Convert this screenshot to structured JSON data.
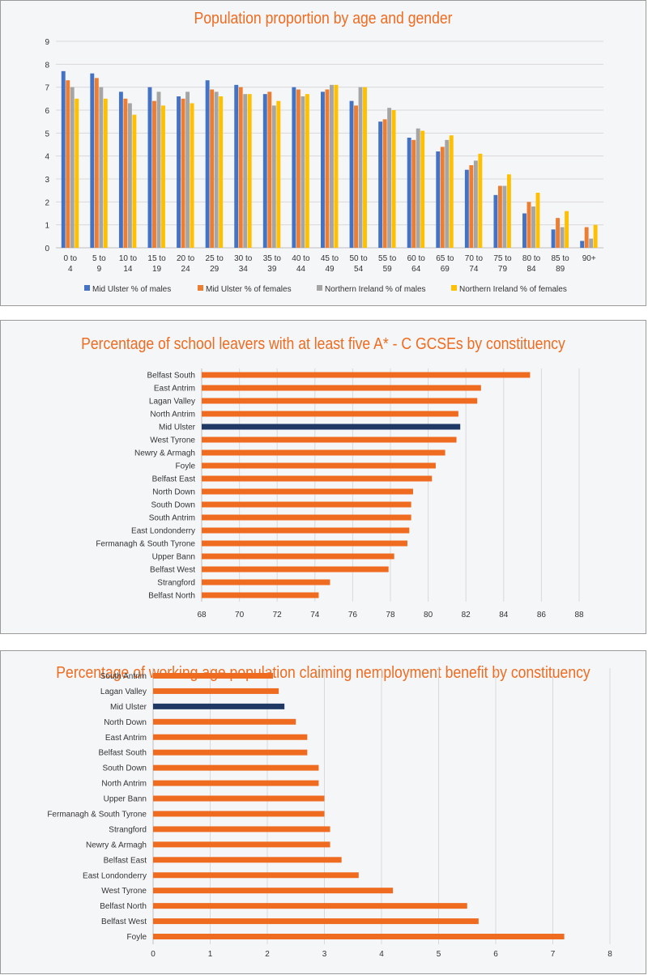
{
  "charts": [
    {
      "title": "Population proportion by age and gender"
    },
    {
      "title": "Percentage of school leavers with at least five A* - C GCSEs by constituency"
    },
    {
      "title": "Percentage of working age population claiming nemployment benefit by constituency"
    }
  ],
  "colors": {
    "title": "#ee6b1f",
    "blue": "#4472c4",
    "orange": "#ed7d31",
    "gray": "#a5a5a5",
    "yellow": "#ffc000",
    "highlight": "#1f3864",
    "bar": "#ee6b1f"
  },
  "chart_data": [
    {
      "type": "bar",
      "title": "Population proportion by age and gender",
      "categories": [
        "0 to 4",
        "5 to 9",
        "10 to 14",
        "15 to 19",
        "20 to 24",
        "25 to 29",
        "30 to 34",
        "35 to 39",
        "40 to 44",
        "45 to 49",
        "50 to 54",
        "55 to 59",
        "60 to 64",
        "65 to 69",
        "70 to 74",
        "75 to 79",
        "80 to 84",
        "85 to 89",
        "90+"
      ],
      "series": [
        {
          "name": "Mid Ulster % of males",
          "color": "#4472c4",
          "values": [
            7.7,
            7.6,
            6.8,
            7.0,
            6.6,
            7.3,
            7.1,
            6.7,
            7.0,
            6.8,
            6.4,
            5.5,
            4.8,
            4.2,
            3.4,
            2.3,
            1.5,
            0.8,
            0.3
          ]
        },
        {
          "name": "Mid Ulster % of females",
          "color": "#ed7d31",
          "values": [
            7.3,
            7.4,
            6.5,
            6.4,
            6.5,
            6.9,
            7.0,
            6.8,
            6.9,
            6.9,
            6.2,
            5.6,
            4.7,
            4.4,
            3.6,
            2.7,
            2.0,
            1.3,
            0.9
          ]
        },
        {
          "name": "Northern Ireland % of males",
          "color": "#a5a5a5",
          "values": [
            7.0,
            7.0,
            6.3,
            6.8,
            6.8,
            6.8,
            6.7,
            6.2,
            6.6,
            7.1,
            7.0,
            6.1,
            5.2,
            4.7,
            3.8,
            2.7,
            1.8,
            0.9,
            0.4
          ]
        },
        {
          "name": "Northern Ireland % of females",
          "color": "#ffc000",
          "values": [
            6.5,
            6.5,
            5.8,
            6.2,
            6.3,
            6.6,
            6.7,
            6.4,
            6.7,
            7.1,
            7.0,
            6.0,
            5.1,
            4.9,
            4.1,
            3.2,
            2.4,
            1.6,
            1.0
          ]
        }
      ],
      "ylim": [
        0,
        9
      ],
      "yticks": [
        0,
        1,
        2,
        3,
        4,
        5,
        6,
        7,
        8,
        9
      ],
      "grid": true,
      "legend": "bottom"
    },
    {
      "type": "bar",
      "orientation": "horizontal",
      "title": "Percentage of school leavers with at least five A* - C GCSEs by constituency",
      "categories": [
        "Belfast South",
        "East Antrim",
        "Lagan Valley",
        "North Antrim",
        "Mid Ulster",
        "West Tyrone",
        "Newry & Armagh",
        "Foyle",
        "Belfast East",
        "North Down",
        "South Down",
        "South Antrim",
        "East Londonderry",
        "Fermanagh & South Tyrone",
        "Upper  Bann",
        "Belfast West",
        "Strangford",
        "Belfast North"
      ],
      "values": [
        85.4,
        82.8,
        82.6,
        81.6,
        81.7,
        81.5,
        80.9,
        80.4,
        80.2,
        79.2,
        79.1,
        79.1,
        79.0,
        78.9,
        78.2,
        77.9,
        74.8,
        74.2
      ],
      "highlight": "Mid Ulster",
      "xlim": [
        68,
        88
      ],
      "xticks": [
        68,
        70,
        72,
        74,
        76,
        78,
        80,
        82,
        84,
        86,
        88
      ],
      "grid": true
    },
    {
      "type": "bar",
      "orientation": "horizontal",
      "title": "Percentage of working age population claiming nemployment benefit by constituency",
      "categories": [
        "South Antrim",
        "Lagan Valley",
        "Mid Ulster",
        "North Down",
        "East Antrim",
        "Belfast  South",
        "South Down",
        "North Antrim",
        "Upper Bann",
        "Fermanagh & South Tyrone",
        "Strangford",
        "Newry & Armagh",
        "Belfast  East",
        "East Londonderry",
        "West Tyrone",
        "Belfast North",
        "Belfast West",
        "Foyle"
      ],
      "values": [
        2.1,
        2.2,
        2.3,
        2.5,
        2.7,
        2.7,
        2.9,
        2.9,
        3.0,
        3.0,
        3.1,
        3.1,
        3.3,
        3.6,
        4.2,
        5.5,
        5.7,
        7.2
      ],
      "highlight": "Mid Ulster",
      "xlim": [
        0,
        8
      ],
      "xticks": [
        0,
        1,
        2,
        3,
        4,
        5,
        6,
        7,
        8
      ],
      "grid": true
    }
  ]
}
